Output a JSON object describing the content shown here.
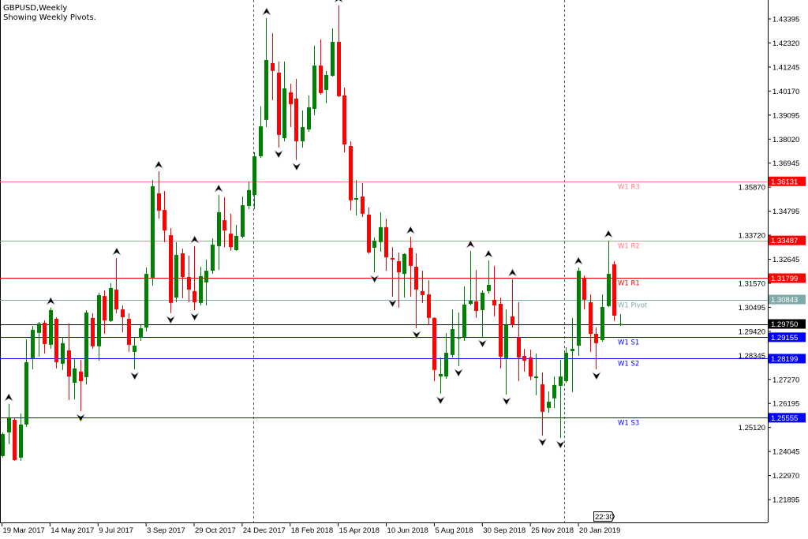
{
  "header": {
    "symbol_timeframe": "GBPUSD,Weekly",
    "subtitle": "Showing Weekly Pivots."
  },
  "time_left_label": "22:30",
  "colors": {
    "bull": "#008000",
    "bear": "#ff0000",
    "resistance": "#ff0000",
    "resistance_far": "#ff8080",
    "pivot": "#7faaaa",
    "support": "#0000ff",
    "current": "#000000",
    "fractal": "#000000"
  },
  "chart_data": {
    "type": "candlestick",
    "title": "GBPUSD,Weekly",
    "ylim": [
      1.2103,
      1.445
    ],
    "y_ticks": [
      "1.43395",
      "1.42320",
      "1.41245",
      "1.40170",
      "1.39095",
      "1.38020",
      "1.36945",
      "1.35870",
      "1.34795",
      "1.33720",
      "1.32645",
      "1.31570",
      "1.30495",
      "1.29420",
      "1.28345",
      "1.27270",
      "1.26195",
      "1.25120",
      "1.24045",
      "1.22970",
      "1.21895"
    ],
    "x_tick_labels": [
      "19 Mar 2017",
      "14 May 2017",
      "9 Jul 2017",
      "3 Sep 2017",
      "29 Oct 2017",
      "24 Dec 2017",
      "18 Feb 2018",
      "15 Apr 2018",
      "10 Jun 2018",
      "5 Aug 2018",
      "30 Sep 2018",
      "25 Nov 2018",
      "20 Jan 2019"
    ],
    "x_tick_every_weeks": 8,
    "first_week": "19 Mar 2017",
    "ohlc": [
      [
        1.2384,
        1.249,
        1.2377,
        1.2483
      ],
      [
        1.249,
        1.2617,
        1.2437,
        1.2553
      ],
      [
        1.2546,
        1.2553,
        1.2363,
        1.2366
      ],
      [
        1.2377,
        1.2575,
        1.2363,
        1.2525
      ],
      [
        1.2525,
        1.2906,
        1.2514,
        1.2804
      ],
      [
        1.2822,
        1.2966,
        1.2772,
        1.2949
      ],
      [
        1.2935,
        1.2984,
        1.2829,
        1.2977
      ],
      [
        1.298,
        1.2991,
        1.2843,
        1.2885
      ],
      [
        1.2882,
        1.3048,
        1.2864,
        1.3037
      ],
      [
        1.2998,
        1.3005,
        1.2776,
        1.2804
      ],
      [
        1.2797,
        1.2917,
        1.2769,
        1.2889
      ],
      [
        1.2857,
        1.2977,
        1.2635,
        1.274
      ],
      [
        1.2712,
        1.2818,
        1.2638,
        1.2776
      ],
      [
        1.2762,
        1.2815,
        1.2585,
        1.2719
      ],
      [
        1.2737,
        1.3037,
        1.2705,
        1.3026
      ],
      [
        1.3002,
        1.3023,
        1.2864,
        1.2875
      ],
      [
        1.2875,
        1.3115,
        1.2811,
        1.3104
      ],
      [
        1.31,
        1.3125,
        1.2931,
        1.2991
      ],
      [
        1.2988,
        1.3157,
        1.2984,
        1.3136
      ],
      [
        1.3129,
        1.327,
        1.3023,
        1.304
      ],
      [
        1.304,
        1.3058,
        1.2938,
        1.3005
      ],
      [
        1.2998,
        1.3023,
        1.285,
        1.2882
      ],
      [
        1.285,
        1.2913,
        1.2772,
        1.2878
      ],
      [
        1.2913,
        1.297,
        1.2899,
        1.2956
      ],
      [
        1.2959,
        1.3228,
        1.2942,
        1.3199
      ],
      [
        1.3182,
        1.3619,
        1.3146,
        1.3591
      ],
      [
        1.3559,
        1.3658,
        1.3446,
        1.3482
      ],
      [
        1.3485,
        1.357,
        1.3341,
        1.3393
      ],
      [
        1.3372,
        1.3404,
        1.3023,
        1.3069
      ],
      [
        1.3093,
        1.3341,
        1.3072,
        1.3284
      ],
      [
        1.3291,
        1.3312,
        1.309,
        1.3185
      ],
      [
        1.3185,
        1.3281,
        1.3072,
        1.3129
      ],
      [
        1.3122,
        1.3323,
        1.3037,
        1.3072
      ],
      [
        1.3069,
        1.3231,
        1.3058,
        1.3189
      ],
      [
        1.3161,
        1.3263,
        1.3058,
        1.3213
      ],
      [
        1.3213,
        1.3358,
        1.3199,
        1.333
      ],
      [
        1.3323,
        1.3552,
        1.3217,
        1.3475
      ],
      [
        1.3439,
        1.3542,
        1.3319,
        1.3393
      ],
      [
        1.3379,
        1.3468,
        1.3302,
        1.3319
      ],
      [
        1.3305,
        1.3418,
        1.3302,
        1.3369
      ],
      [
        1.3365,
        1.3545,
        1.3358,
        1.3506
      ],
      [
        1.3503,
        1.3612,
        1.3489,
        1.3574
      ],
      [
        1.3552,
        1.3743,
        1.3489,
        1.3725
      ],
      [
        1.3725,
        1.3948,
        1.3718,
        1.3859
      ],
      [
        1.3888,
        1.4343,
        1.3856,
        1.4156
      ],
      [
        1.4142,
        1.4276,
        1.3976,
        1.4107
      ],
      [
        1.4099,
        1.4149,
        1.3764,
        1.3821
      ],
      [
        1.3806,
        1.4149,
        1.3792,
        1.4029
      ],
      [
        1.4011,
        1.405,
        1.3856,
        1.3958
      ],
      [
        1.3983,
        1.4071,
        1.3708,
        1.3792
      ],
      [
        1.3792,
        1.393,
        1.3764,
        1.3856
      ],
      [
        1.3845,
        1.3997,
        1.3835,
        1.3944
      ],
      [
        1.3937,
        1.422,
        1.3909,
        1.4131
      ],
      [
        1.4131,
        1.4248,
        1.4,
        1.4008
      ],
      [
        1.4022,
        1.4107,
        1.3962,
        1.4089
      ],
      [
        1.4085,
        1.4297,
        1.4082,
        1.4237
      ],
      [
        1.4237,
        1.44,
        1.399,
        1.3994
      ],
      [
        1.3997,
        1.4032,
        1.3743,
        1.3778
      ],
      [
        1.3771,
        1.3792,
        1.3482,
        1.3528
      ],
      [
        1.3531,
        1.3619,
        1.3461,
        1.3538
      ],
      [
        1.3545,
        1.3605,
        1.3453,
        1.3468
      ],
      [
        1.3464,
        1.3496,
        1.3288,
        1.3295
      ],
      [
        1.3316,
        1.3362,
        1.3206,
        1.3348
      ],
      [
        1.3341,
        1.3475,
        1.3298,
        1.3408
      ],
      [
        1.3408,
        1.3446,
        1.3213,
        1.3273
      ],
      [
        1.327,
        1.3319,
        1.3097,
        1.3263
      ],
      [
        1.3256,
        1.3295,
        1.3048,
        1.3206
      ],
      [
        1.3199,
        1.3291,
        1.3093,
        1.3288
      ],
      [
        1.3316,
        1.3365,
        1.3097,
        1.3235
      ],
      [
        1.3231,
        1.3291,
        1.2956,
        1.3129
      ],
      [
        1.3122,
        1.3213,
        1.3069,
        1.3104
      ],
      [
        1.3107,
        1.3171,
        1.297,
        1.3002
      ],
      [
        1.3002,
        1.3005,
        1.2719,
        1.2769
      ],
      [
        1.274,
        1.2825,
        1.2663,
        1.2751
      ],
      [
        1.274,
        1.2935,
        1.273,
        1.2846
      ],
      [
        1.2836,
        1.304,
        1.2825,
        1.2952
      ],
      [
        1.291,
        1.3026,
        1.2786,
        1.2917
      ],
      [
        1.2917,
        1.3143,
        1.2899,
        1.3062
      ],
      [
        1.3065,
        1.3302,
        1.3058,
        1.3079
      ],
      [
        1.3076,
        1.3217,
        1.3002,
        1.3033
      ],
      [
        1.3037,
        1.3125,
        1.2917,
        1.3115
      ],
      [
        1.3122,
        1.3259,
        1.3111,
        1.315
      ],
      [
        1.3083,
        1.3235,
        1.3009,
        1.3058
      ],
      [
        1.3065,
        1.3093,
        1.2776,
        1.2829
      ],
      [
        1.2822,
        1.304,
        1.2659,
        1.297
      ],
      [
        1.3009,
        1.3175,
        1.2959,
        1.297
      ],
      [
        1.2917,
        1.3072,
        1.2719,
        1.2825
      ],
      [
        1.2832,
        1.2864,
        1.2762,
        1.2811
      ],
      [
        1.2825,
        1.286,
        1.2723,
        1.274
      ],
      [
        1.2733,
        1.2843,
        1.2656,
        1.274
      ],
      [
        1.2705,
        1.2758,
        1.2476,
        1.2582
      ],
      [
        1.2599,
        1.2673,
        1.2578,
        1.2627
      ],
      [
        1.2642,
        1.274,
        1.2599,
        1.2702
      ],
      [
        1.2698,
        1.2815,
        1.2465,
        1.274
      ],
      [
        1.2719,
        1.2871,
        1.2712,
        1.2846
      ],
      [
        1.2853,
        1.3002,
        1.267,
        1.2864
      ],
      [
        1.2878,
        1.3228,
        1.2832,
        1.3213
      ],
      [
        1.3182,
        1.3192,
        1.304,
        1.3083
      ],
      [
        1.3072,
        1.3107,
        1.285,
        1.2931
      ],
      [
        1.2931,
        1.2959,
        1.2772,
        1.2889
      ],
      [
        1.2903,
        1.3107,
        1.2896,
        1.3051
      ],
      [
        1.3055,
        1.3348,
        1.3051,
        1.3199
      ],
      [
        1.3242,
        1.3256,
        1.2988,
        1.3012
      ],
      [
        1.2971,
        1.302,
        1.2966,
        1.2975
      ]
    ],
    "fractals_up": [
      1,
      8,
      19,
      26,
      32,
      36,
      44,
      56,
      68,
      78,
      81,
      85,
      96,
      101
    ],
    "fractals_down": [
      13,
      22,
      28,
      32,
      46,
      49,
      62,
      65,
      69,
      73,
      76,
      80,
      84,
      90,
      93,
      99
    ],
    "pivots": [
      {
        "label": "W1 R3",
        "value": "1.36131",
        "kind": "resistance_far"
      },
      {
        "label": "W1 R2",
        "value": "1.33487",
        "kind": "resistance_far"
      },
      {
        "label": "W1 R1",
        "value": "1.31799",
        "kind": "resistance"
      },
      {
        "label": "W1 Pivot",
        "value": "1.30843",
        "kind": "pivot"
      },
      {
        "label": "W1 S1",
        "value": "1.29155",
        "kind": "support"
      },
      {
        "label": "W1 S2",
        "value": "1.28199",
        "kind": "support"
      },
      {
        "label": "W1 S3",
        "value": "1.25555",
        "kind": "support"
      }
    ],
    "current_price": "1.29750"
  }
}
